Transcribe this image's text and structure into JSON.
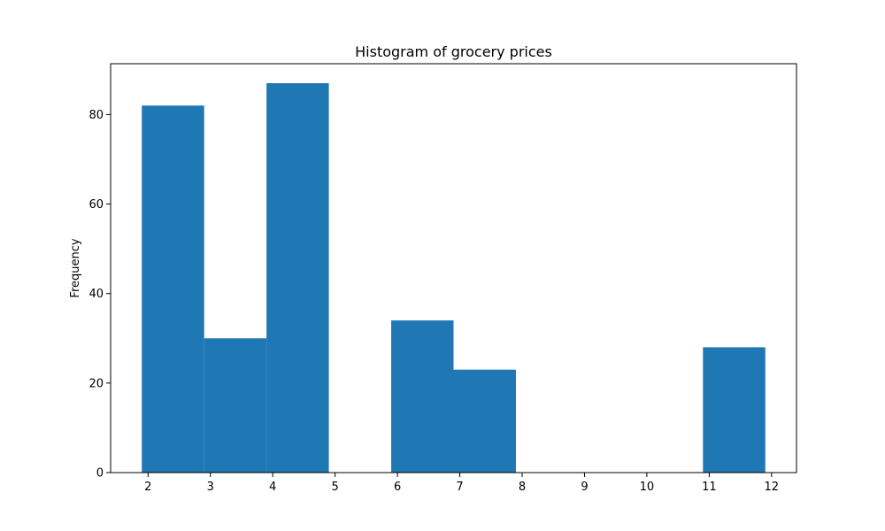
{
  "chart_data": {
    "type": "bar",
    "title": "Histogram of grocery prices",
    "xlabel": "",
    "ylabel": "Frequency",
    "bins": [
      {
        "start": 1.9,
        "end": 2.9,
        "count": 82
      },
      {
        "start": 2.9,
        "end": 3.9,
        "count": 30
      },
      {
        "start": 3.9,
        "end": 4.9,
        "count": 87
      },
      {
        "start": 4.9,
        "end": 5.9,
        "count": 0
      },
      {
        "start": 5.9,
        "end": 6.9,
        "count": 34
      },
      {
        "start": 6.9,
        "end": 7.9,
        "count": 23
      },
      {
        "start": 7.9,
        "end": 8.9,
        "count": 0
      },
      {
        "start": 8.9,
        "end": 9.9,
        "count": 0
      },
      {
        "start": 9.9,
        "end": 10.9,
        "count": 0
      },
      {
        "start": 10.9,
        "end": 11.9,
        "count": 28
      }
    ],
    "xlim": [
      1.4,
      12.4
    ],
    "ylim": [
      0,
      91.35
    ],
    "xticks": [
      2,
      3,
      4,
      5,
      6,
      7,
      8,
      9,
      10,
      11,
      12
    ],
    "xtick_labels": [
      "2",
      "3",
      "4",
      "5",
      "6",
      "7",
      "8",
      "9",
      "10",
      "11",
      "12"
    ],
    "yticks": [
      0,
      20,
      40,
      60,
      80
    ],
    "ytick_labels": [
      "0",
      "20",
      "40",
      "60",
      "80"
    ],
    "grid": false,
    "colors": {
      "bar": "#1f77b4",
      "axis": "#000000",
      "background": "#ffffff"
    }
  }
}
